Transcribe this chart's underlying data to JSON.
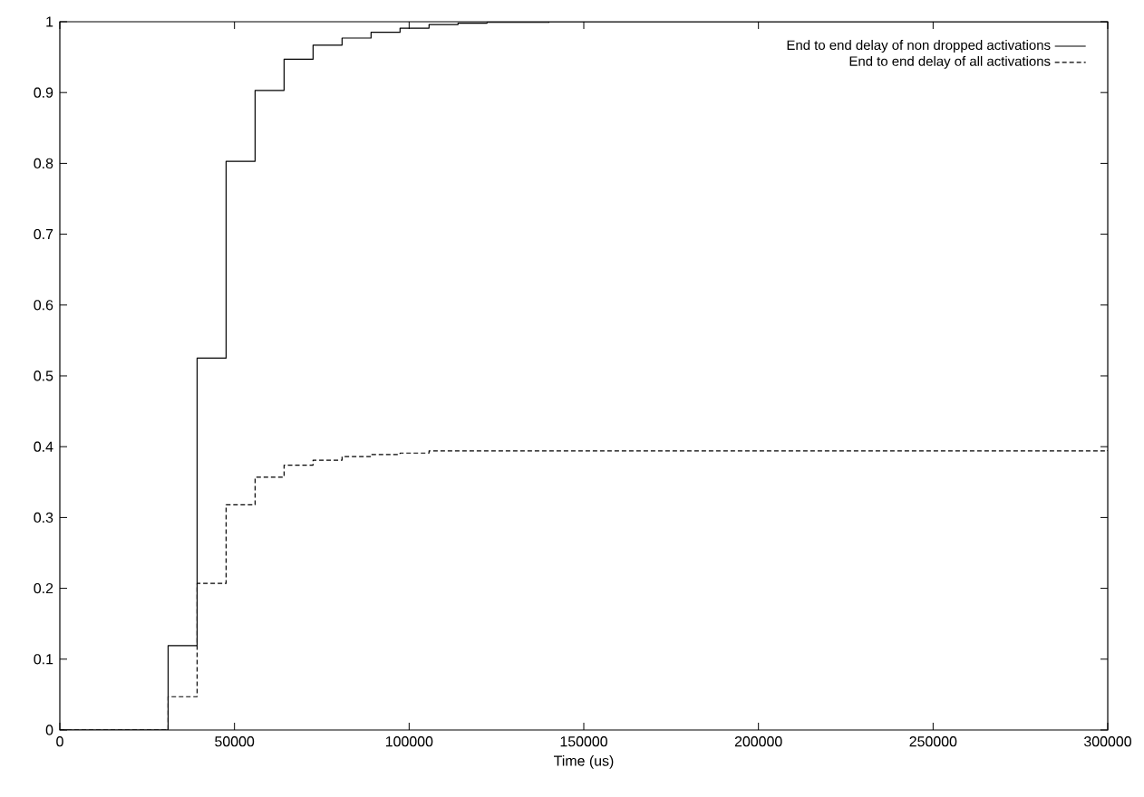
{
  "chart_data": {
    "type": "step",
    "xlabel": "Time (us)",
    "xlim": [
      0,
      300000
    ],
    "ylim": [
      0,
      1
    ],
    "xticks": [
      0,
      50000,
      100000,
      150000,
      200000,
      250000,
      300000
    ],
    "yticks": [
      0,
      0.1,
      0.2,
      0.3,
      0.4,
      0.5,
      0.6,
      0.7,
      0.8,
      0.9,
      1
    ],
    "legend": "top right",
    "grid": false,
    "series": [
      {
        "name": "End to end delay of non dropped activations",
        "color": "#000000",
        "line_style": "solid",
        "x": [
          0,
          31000,
          39300,
          47600,
          55900,
          64200,
          72500,
          80800,
          89100,
          97400,
          105700,
          114000,
          122300,
          140000,
          300000
        ],
        "values": [
          0,
          0.119,
          0.525,
          0.803,
          0.903,
          0.947,
          0.967,
          0.977,
          0.985,
          0.991,
          0.996,
          0.998,
          0.999,
          1,
          1
        ]
      },
      {
        "name": "End to end delay of all activations",
        "color": "#000000",
        "line_style": "dashed",
        "x": [
          0,
          31000,
          39300,
          47600,
          55900,
          64200,
          72500,
          80800,
          89100,
          97400,
          105700,
          300000
        ],
        "values": [
          0,
          0.047,
          0.207,
          0.318,
          0.357,
          0.374,
          0.381,
          0.386,
          0.389,
          0.391,
          0.394,
          0.395
        ]
      }
    ]
  }
}
